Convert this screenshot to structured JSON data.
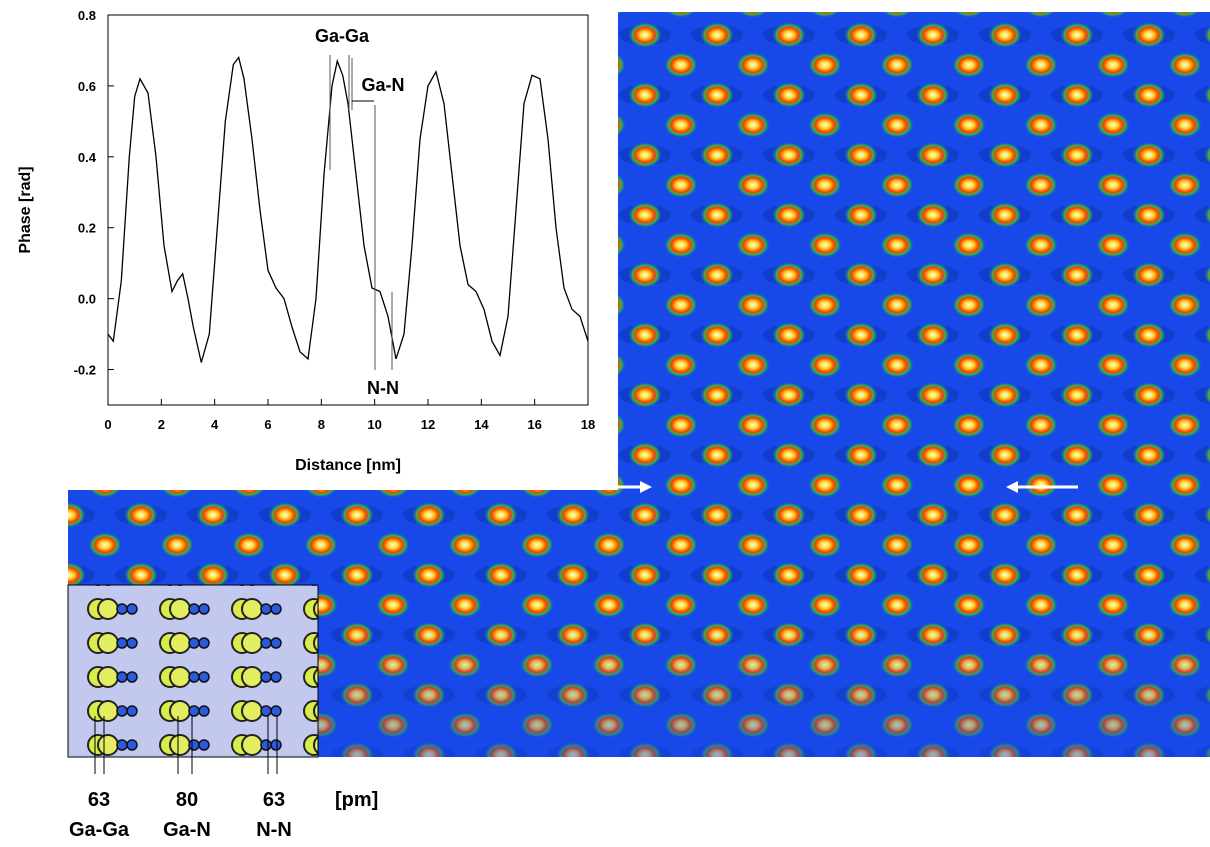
{
  "chart_data": {
    "type": "line",
    "x_label": "Distance [nm]",
    "y_label": "Phase [rad]",
    "x": [
      0,
      0.2,
      0.5,
      0.8,
      1.0,
      1.2,
      1.5,
      1.8,
      2.1,
      2.4,
      2.6,
      2.8,
      3.0,
      3.2,
      3.5,
      3.8,
      4.1,
      4.4,
      4.7,
      4.9,
      5.1,
      5.4,
      5.7,
      6.0,
      6.3,
      6.6,
      6.9,
      7.2,
      7.5,
      7.8,
      8.1,
      8.4,
      8.6,
      8.8,
      9.0,
      9.3,
      9.6,
      9.9,
      10.2,
      10.5,
      10.8,
      11.1,
      11.4,
      11.7,
      12.0,
      12.3,
      12.6,
      12.9,
      13.2,
      13.5,
      13.8,
      14.1,
      14.4,
      14.7,
      15.0,
      15.3,
      15.6,
      15.9,
      16.2,
      16.5,
      16.8,
      17.1,
      17.4,
      17.7,
      18.0
    ],
    "series": [
      {
        "color": "#000000",
        "values": [
          -0.1,
          -0.12,
          0.05,
          0.4,
          0.57,
          0.62,
          0.58,
          0.4,
          0.15,
          0.02,
          0.05,
          0.07,
          0.0,
          -0.08,
          -0.18,
          -0.1,
          0.2,
          0.5,
          0.66,
          0.68,
          0.62,
          0.45,
          0.25,
          0.08,
          0.03,
          0.0,
          -0.08,
          -0.15,
          -0.17,
          0.0,
          0.35,
          0.6,
          0.67,
          0.63,
          0.55,
          0.35,
          0.15,
          0.03,
          0.02,
          -0.05,
          -0.17,
          -0.1,
          0.15,
          0.45,
          0.6,
          0.64,
          0.55,
          0.35,
          0.15,
          0.04,
          0.02,
          -0.03,
          -0.12,
          -0.16,
          -0.05,
          0.25,
          0.55,
          0.63,
          0.62,
          0.45,
          0.2,
          0.03,
          -0.03,
          -0.05,
          -0.12
        ]
      }
    ],
    "xlim": [
      0,
      18
    ],
    "ylim": [
      -0.3,
      0.8
    ],
    "xticks": [
      0,
      2,
      4,
      6,
      8,
      10,
      12,
      14,
      16,
      18
    ],
    "yticks": [
      -0.2,
      {
        "value": 0,
        "label": "0.0"
      },
      0.2,
      0.4,
      0.6,
      0.8
    ],
    "annotations": [
      "Ga-Ga",
      "Ga-N",
      "N-N"
    ]
  },
  "inset": {
    "unit": "[pm]",
    "spacings": [
      {
        "distance": 63,
        "pair": "Ga-Ga"
      },
      {
        "distance": 80,
        "pair": "Ga-N"
      },
      {
        "distance": 63,
        "pair": "N-N"
      }
    ]
  }
}
